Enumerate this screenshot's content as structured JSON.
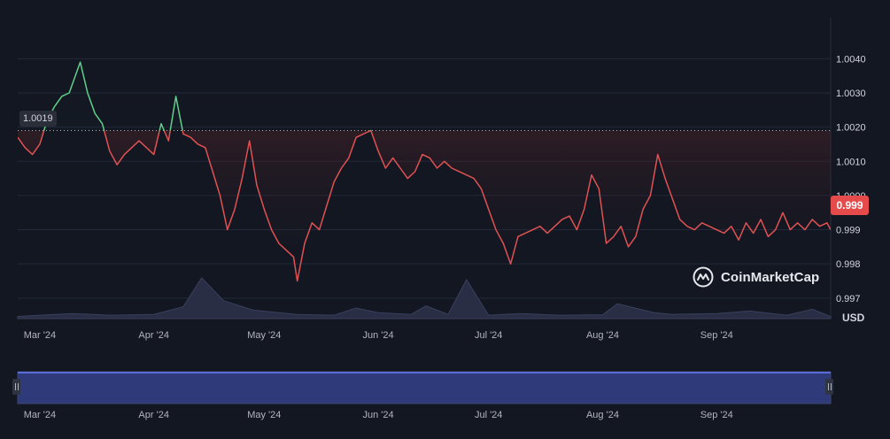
{
  "chart_data": {
    "type": "line",
    "title": "",
    "xlabel": "",
    "ylabel": "",
    "currency": "USD",
    "brand": "CoinMarketCap",
    "reference_value": 1.0019,
    "reference_label": "1.0019",
    "current_value": 0.999,
    "current_label": "0.999",
    "ylim": [
      0.9964,
      1.0052
    ],
    "y_ticks": [
      {
        "label": "1.0040",
        "value": 1.004
      },
      {
        "label": "1.0030",
        "value": 1.003
      },
      {
        "label": "1.0020",
        "value": 1.002
      },
      {
        "label": "1.0010",
        "value": 1.001
      },
      {
        "label": "1.0000",
        "value": 1.0
      },
      {
        "label": "0.999",
        "value": 0.999
      },
      {
        "label": "0.998",
        "value": 0.998
      },
      {
        "label": "0.997",
        "value": 0.997
      }
    ],
    "x_range": [
      "2024-02-24",
      "2024-10-02"
    ],
    "x_ticks": [
      {
        "label": "Mar '24",
        "date": "2024-03-01"
      },
      {
        "label": "Apr '24",
        "date": "2024-04-01"
      },
      {
        "label": "May '24",
        "date": "2024-05-01"
      },
      {
        "label": "Jun '24",
        "date": "2024-06-01"
      },
      {
        "label": "Jul '24",
        "date": "2024-07-01"
      },
      {
        "label": "Aug '24",
        "date": "2024-08-01"
      },
      {
        "label": "Sep '24",
        "date": "2024-09-01"
      }
    ],
    "colors": {
      "above": "#5fd08a",
      "below": "#e05252",
      "volume": "#2a2e45",
      "navigator": "#2e3a7a",
      "navigator_line": "#5b6bd6"
    },
    "series": [
      {
        "points": [
          [
            "2024-02-24",
            1.0017
          ],
          [
            "2024-02-26",
            1.0014
          ],
          [
            "2024-02-28",
            1.0012
          ],
          [
            "2024-03-01",
            1.0015
          ],
          [
            "2024-03-03",
            1.0022
          ],
          [
            "2024-03-05",
            1.0026
          ],
          [
            "2024-03-07",
            1.0029
          ],
          [
            "2024-03-09",
            1.003
          ],
          [
            "2024-03-10",
            1.0033
          ],
          [
            "2024-03-12",
            1.0039
          ],
          [
            "2024-03-14",
            1.003
          ],
          [
            "2024-03-16",
            1.0024
          ],
          [
            "2024-03-18",
            1.0021
          ],
          [
            "2024-03-20",
            1.0013
          ],
          [
            "2024-03-22",
            1.0009
          ],
          [
            "2024-03-24",
            1.0012
          ],
          [
            "2024-03-26",
            1.0014
          ],
          [
            "2024-03-28",
            1.0016
          ],
          [
            "2024-03-30",
            1.0014
          ],
          [
            "2024-04-01",
            1.0012
          ],
          [
            "2024-04-03",
            1.0021
          ],
          [
            "2024-04-05",
            1.0016
          ],
          [
            "2024-04-07",
            1.0029
          ],
          [
            "2024-04-09",
            1.0018
          ],
          [
            "2024-04-11",
            1.0017
          ],
          [
            "2024-04-13",
            1.0015
          ],
          [
            "2024-04-15",
            1.0014
          ],
          [
            "2024-04-17",
            1.0007
          ],
          [
            "2024-04-19",
            1.0
          ],
          [
            "2024-04-21",
            0.999
          ],
          [
            "2024-04-23",
            0.9996
          ],
          [
            "2024-04-25",
            1.0005
          ],
          [
            "2024-04-27",
            1.0016
          ],
          [
            "2024-04-29",
            1.0003
          ],
          [
            "2024-05-01",
            0.9996
          ],
          [
            "2024-05-03",
            0.999
          ],
          [
            "2024-05-05",
            0.9986
          ],
          [
            "2024-05-07",
            0.9984
          ],
          [
            "2024-05-09",
            0.9982
          ],
          [
            "2024-05-10",
            0.9975
          ],
          [
            "2024-05-12",
            0.9986
          ],
          [
            "2024-05-14",
            0.9992
          ],
          [
            "2024-05-16",
            0.999
          ],
          [
            "2024-05-18",
            0.9997
          ],
          [
            "2024-05-20",
            1.0004
          ],
          [
            "2024-05-22",
            1.0008
          ],
          [
            "2024-05-24",
            1.0011
          ],
          [
            "2024-05-26",
            1.0017
          ],
          [
            "2024-05-28",
            1.0018
          ],
          [
            "2024-05-30",
            1.0019
          ],
          [
            "2024-06-01",
            1.0013
          ],
          [
            "2024-06-03",
            1.0008
          ],
          [
            "2024-06-05",
            1.0011
          ],
          [
            "2024-06-07",
            1.0008
          ],
          [
            "2024-06-09",
            1.0005
          ],
          [
            "2024-06-11",
            1.0007
          ],
          [
            "2024-06-13",
            1.0012
          ],
          [
            "2024-06-15",
            1.0011
          ],
          [
            "2024-06-17",
            1.0008
          ],
          [
            "2024-06-19",
            1.001
          ],
          [
            "2024-06-21",
            1.0008
          ],
          [
            "2024-06-23",
            1.0007
          ],
          [
            "2024-06-25",
            1.0006
          ],
          [
            "2024-06-27",
            1.0005
          ],
          [
            "2024-06-29",
            1.0002
          ],
          [
            "2024-07-01",
            0.9996
          ],
          [
            "2024-07-03",
            0.999
          ],
          [
            "2024-07-05",
            0.9986
          ],
          [
            "2024-07-07",
            0.998
          ],
          [
            "2024-07-09",
            0.9988
          ],
          [
            "2024-07-11",
            0.9989
          ],
          [
            "2024-07-13",
            0.999
          ],
          [
            "2024-07-15",
            0.9991
          ],
          [
            "2024-07-17",
            0.9989
          ],
          [
            "2024-07-19",
            0.9991
          ],
          [
            "2024-07-21",
            0.9993
          ],
          [
            "2024-07-23",
            0.9994
          ],
          [
            "2024-07-25",
            0.999
          ],
          [
            "2024-07-27",
            0.9996
          ],
          [
            "2024-07-29",
            1.0006
          ],
          [
            "2024-07-31",
            1.0002
          ],
          [
            "2024-08-02",
            0.9986
          ],
          [
            "2024-08-04",
            0.9988
          ],
          [
            "2024-08-06",
            0.9991
          ],
          [
            "2024-08-08",
            0.9985
          ],
          [
            "2024-08-10",
            0.9988
          ],
          [
            "2024-08-12",
            0.9996
          ],
          [
            "2024-08-14",
            1.0
          ],
          [
            "2024-08-16",
            1.0012
          ],
          [
            "2024-08-18",
            1.0005
          ],
          [
            "2024-08-20",
            0.9999
          ],
          [
            "2024-08-22",
            0.9993
          ],
          [
            "2024-08-24",
            0.9991
          ],
          [
            "2024-08-26",
            0.999
          ],
          [
            "2024-08-28",
            0.9992
          ],
          [
            "2024-08-30",
            0.9991
          ],
          [
            "2024-09-01",
            0.999
          ],
          [
            "2024-09-03",
            0.9989
          ],
          [
            "2024-09-05",
            0.9991
          ],
          [
            "2024-09-07",
            0.9987
          ],
          [
            "2024-09-09",
            0.9992
          ],
          [
            "2024-09-11",
            0.9989
          ],
          [
            "2024-09-13",
            0.9993
          ],
          [
            "2024-09-15",
            0.9988
          ],
          [
            "2024-09-17",
            0.999
          ],
          [
            "2024-09-19",
            0.9995
          ],
          [
            "2024-09-21",
            0.999
          ],
          [
            "2024-09-23",
            0.9992
          ],
          [
            "2024-09-25",
            0.999
          ],
          [
            "2024-09-27",
            0.9993
          ],
          [
            "2024-09-29",
            0.9991
          ],
          [
            "2024-10-01",
            0.9992
          ],
          [
            "2024-10-02",
            0.999
          ]
        ]
      }
    ],
    "volume": {
      "dates": [
        "2024-02-24",
        "2024-03-01",
        "2024-03-10",
        "2024-03-20",
        "2024-04-01",
        "2024-04-09",
        "2024-04-14",
        "2024-04-20",
        "2024-04-28",
        "2024-05-10",
        "2024-05-20",
        "2024-05-26",
        "2024-06-01",
        "2024-06-10",
        "2024-06-14",
        "2024-06-20",
        "2024-06-25",
        "2024-07-01",
        "2024-07-10",
        "2024-07-20",
        "2024-08-01",
        "2024-08-05",
        "2024-08-15",
        "2024-08-20",
        "2024-09-01",
        "2024-09-10",
        "2024-09-20",
        "2024-09-27",
        "2024-10-02"
      ],
      "values": [
        0.05,
        0.08,
        0.12,
        0.08,
        0.1,
        0.28,
        0.96,
        0.42,
        0.2,
        0.1,
        0.08,
        0.25,
        0.14,
        0.1,
        0.3,
        0.1,
        0.92,
        0.08,
        0.12,
        0.08,
        0.09,
        0.35,
        0.14,
        0.1,
        0.12,
        0.18,
        0.08,
        0.22,
        0.05
      ]
    }
  }
}
